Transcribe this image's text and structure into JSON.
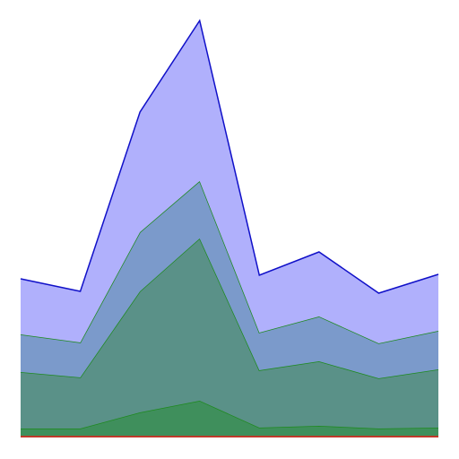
{
  "chart_data": {
    "type": "stackplot",
    "x": [
      0,
      1,
      2,
      3,
      4,
      5,
      6,
      7
    ],
    "xlim": [
      0,
      7
    ],
    "ylim": [
      0,
      470
    ],
    "series": [
      {
        "color": "#c0392b",
        "edgecolor": "#c0392b",
        "values": [
          2,
          2,
          2,
          2,
          2,
          2,
          2,
          2
        ]
      },
      {
        "color": "#3f8f5c",
        "edgecolor": "#1e8a1e",
        "values": [
          8,
          8,
          26,
          39,
          9,
          11,
          8,
          9
        ]
      },
      {
        "color": "#5a9188",
        "edgecolor": "#1e8a1e",
        "values": [
          63,
          57,
          135,
          181,
          64,
          72,
          56,
          65
        ]
      },
      {
        "color": "#7b9acb",
        "edgecolor": "#1e8a1e",
        "values": [
          42,
          39,
          66,
          64,
          42,
          50,
          39,
          43
        ]
      },
      {
        "color": "#b0b0fc",
        "edgecolor": "#1010c8",
        "values": [
          62,
          57,
          134,
          179,
          64,
          72,
          56,
          63
        ]
      }
    ]
  }
}
